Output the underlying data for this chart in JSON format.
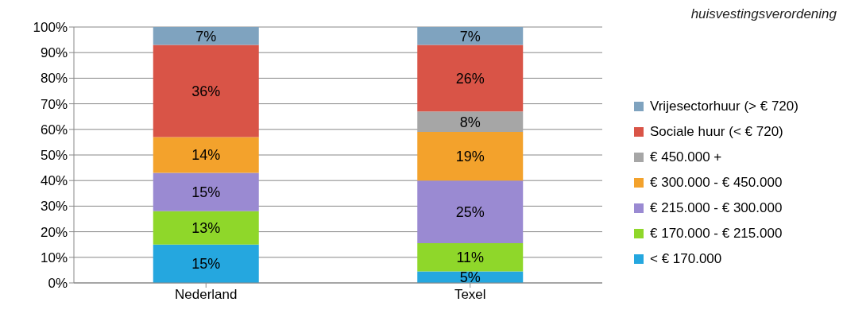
{
  "chart_data": {
    "type": "bar",
    "title": "huisvestingsverordening",
    "categories": [
      "Nederland",
      "Texel"
    ],
    "stacked": true,
    "ylim": [
      0,
      100
    ],
    "yticks": [
      {
        "value": 0,
        "label": "0%"
      },
      {
        "value": 10,
        "label": "10%"
      },
      {
        "value": 20,
        "label": "20%"
      },
      {
        "value": 30,
        "label": "30%"
      },
      {
        "value": 40,
        "label": "40%"
      },
      {
        "value": 50,
        "label": "50%"
      },
      {
        "value": 60,
        "label": "60%"
      },
      {
        "value": 70,
        "label": "70%"
      },
      {
        "value": 80,
        "label": "80%"
      },
      {
        "value": 90,
        "label": "90%"
      },
      {
        "value": 100,
        "label": "100%"
      }
    ],
    "grid": "y",
    "legend": "right",
    "series": [
      {
        "name": "< € 170.000",
        "color": "#25a7df",
        "values": [
          15,
          4.5
        ],
        "value_labels": [
          "15%",
          "5%"
        ]
      },
      {
        "name": "€ 170.000 - € 215.000",
        "color": "#8fd72a",
        "values": [
          13,
          11
        ],
        "value_labels": [
          "13%",
          "11%"
        ]
      },
      {
        "name": "€ 215.000 - € 300.000",
        "color": "#9a8ad2",
        "values": [
          15,
          24.5
        ],
        "value_labels": [
          "15%",
          "25%"
        ]
      },
      {
        "name": "€ 300.000 - € 450.000",
        "color": "#f3a22c",
        "values": [
          14,
          19
        ],
        "value_labels": [
          "14%",
          "19%"
        ]
      },
      {
        "name": "€ 450.000 +",
        "color": "#a6a6a6",
        "values": [
          null,
          8
        ],
        "value_labels": [
          null,
          "8%"
        ]
      },
      {
        "name": "Sociale huur (< € 720)",
        "color": "#d95447",
        "values": [
          36,
          26
        ],
        "value_labels": [
          "36%",
          "26%"
        ]
      },
      {
        "name": "Vrijesectorhuur (> € 720)",
        "color": "#7fa3bf",
        "values": [
          7,
          7
        ],
        "value_labels": [
          "7%",
          "7%"
        ]
      }
    ]
  }
}
